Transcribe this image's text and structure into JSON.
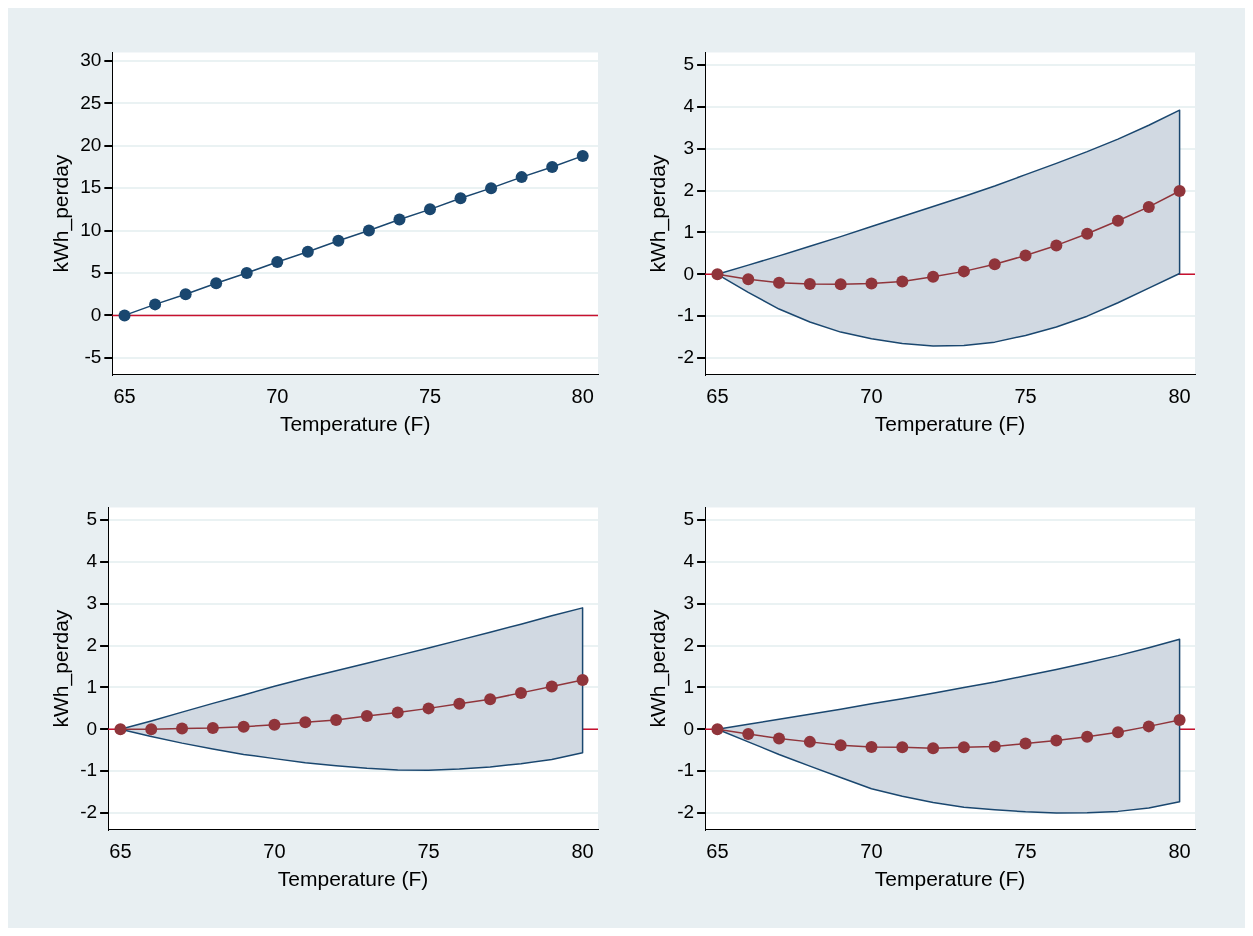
{
  "chart_data": [
    {
      "type": "line",
      "xlabel": "Temperature (F)",
      "ylabel": "kWh_perday",
      "x": [
        65,
        66,
        67,
        68,
        69,
        70,
        71,
        72,
        73,
        74,
        75,
        76,
        77,
        78,
        79,
        80
      ],
      "xlim": [
        64.6,
        80.5
      ],
      "xticks": [
        65,
        70,
        75,
        80
      ],
      "ylim": [
        -7,
        31
      ],
      "yticks": [
        -5,
        0,
        5,
        10,
        15,
        20,
        25,
        30
      ],
      "grid": "y",
      "marker": "circle",
      "series": [
        {
          "color": "#1a476f",
          "values": [
            0,
            1.3,
            2.5,
            3.8,
            5,
            6.3,
            7.5,
            8.8,
            10,
            11.3,
            12.5,
            13.8,
            15,
            16.3,
            17.5,
            18.8
          ]
        }
      ],
      "ref_lines": [
        {
          "axis": "y",
          "value": 0,
          "color": "#c8102e"
        }
      ]
    },
    {
      "type": "line",
      "xlabel": "Temperature (F)",
      "ylabel": "kWh_perday",
      "x": [
        65,
        66,
        67,
        68,
        69,
        70,
        71,
        72,
        73,
        74,
        75,
        76,
        77,
        78,
        79,
        80
      ],
      "xlim": [
        64.6,
        80.5
      ],
      "xticks": [
        65,
        70,
        75,
        80
      ],
      "ylim": [
        -2.4,
        5.3
      ],
      "yticks": [
        -2,
        -1,
        0,
        1,
        2,
        3,
        4,
        5
      ],
      "grid": "y",
      "marker": "circle",
      "series": [
        {
          "color": "#90353b",
          "values": [
            0,
            -0.12,
            -0.2,
            -0.23,
            -0.24,
            -0.22,
            -0.17,
            -0.06,
            0.07,
            0.24,
            0.45,
            0.69,
            0.97,
            1.28,
            1.61,
            1.99
          ],
          "upper": [
            0,
            0.22,
            0.44,
            0.67,
            0.9,
            1.14,
            1.38,
            1.62,
            1.86,
            2.11,
            2.38,
            2.65,
            2.93,
            3.23,
            3.56,
            3.92
          ],
          "lower": [
            0,
            -0.43,
            -0.83,
            -1.14,
            -1.38,
            -1.54,
            -1.65,
            -1.71,
            -1.7,
            -1.62,
            -1.46,
            -1.26,
            -1.0,
            -0.68,
            -0.33,
            0.02
          ]
        }
      ],
      "ref_lines": [
        {
          "axis": "y",
          "value": 0,
          "color": "#c8102e"
        }
      ]
    },
    {
      "type": "line",
      "xlabel": "Temperature (F)",
      "ylabel": "kWh_perday",
      "x": [
        65,
        66,
        67,
        68,
        69,
        70,
        71,
        72,
        73,
        74,
        75,
        76,
        77,
        78,
        79,
        80
      ],
      "xlim": [
        64.6,
        80.5
      ],
      "xticks": [
        65,
        70,
        75,
        80
      ],
      "ylim": [
        -2.4,
        5.3
      ],
      "yticks": [
        -2,
        -1,
        0,
        1,
        2,
        3,
        4,
        5
      ],
      "grid": "y",
      "marker": "circle",
      "series": [
        {
          "color": "#90353b",
          "values": [
            0,
            0,
            0.02,
            0.03,
            0.06,
            0.11,
            0.17,
            0.22,
            0.32,
            0.4,
            0.5,
            0.61,
            0.72,
            0.87,
            1.02,
            1.18
          ],
          "upper": [
            0,
            0.2,
            0.41,
            0.62,
            0.82,
            1.03,
            1.22,
            1.4,
            1.58,
            1.76,
            1.94,
            2.13,
            2.32,
            2.51,
            2.71,
            2.9
          ],
          "lower": [
            0,
            -0.17,
            -0.33,
            -0.47,
            -0.6,
            -0.7,
            -0.8,
            -0.87,
            -0.93,
            -0.97,
            -0.98,
            -0.95,
            -0.9,
            -0.82,
            -0.72,
            -0.56
          ]
        }
      ],
      "ref_lines": [
        {
          "axis": "y",
          "value": 0,
          "color": "#c8102e"
        }
      ]
    },
    {
      "type": "line",
      "xlabel": "Temperature (F)",
      "ylabel": "kWh_perday",
      "x": [
        65,
        66,
        67,
        68,
        69,
        70,
        71,
        72,
        73,
        74,
        75,
        76,
        77,
        78,
        79,
        80
      ],
      "xlim": [
        64.6,
        80.5
      ],
      "xticks": [
        65,
        70,
        75,
        80
      ],
      "ylim": [
        -2.4,
        5.3
      ],
      "yticks": [
        -2,
        -1,
        0,
        1,
        2,
        3,
        4,
        5
      ],
      "grid": "y",
      "marker": "circle",
      "series": [
        {
          "color": "#90353b",
          "values": [
            0,
            -0.11,
            -0.22,
            -0.3,
            -0.38,
            -0.42,
            -0.43,
            -0.45,
            -0.43,
            -0.41,
            -0.34,
            -0.27,
            -0.18,
            -0.07,
            0.07,
            0.22
          ],
          "upper": [
            0,
            0.12,
            0.24,
            0.36,
            0.48,
            0.61,
            0.73,
            0.86,
            1.0,
            1.13,
            1.28,
            1.43,
            1.59,
            1.76,
            1.95,
            2.15
          ],
          "lower": [
            0,
            -0.3,
            -0.6,
            -0.88,
            -1.15,
            -1.42,
            -1.6,
            -1.75,
            -1.86,
            -1.92,
            -1.97,
            -2.0,
            -1.99,
            -1.96,
            -1.88,
            -1.73
          ]
        }
      ],
      "ref_lines": [
        {
          "axis": "y",
          "value": 0,
          "color": "#c8102e"
        }
      ]
    }
  ]
}
